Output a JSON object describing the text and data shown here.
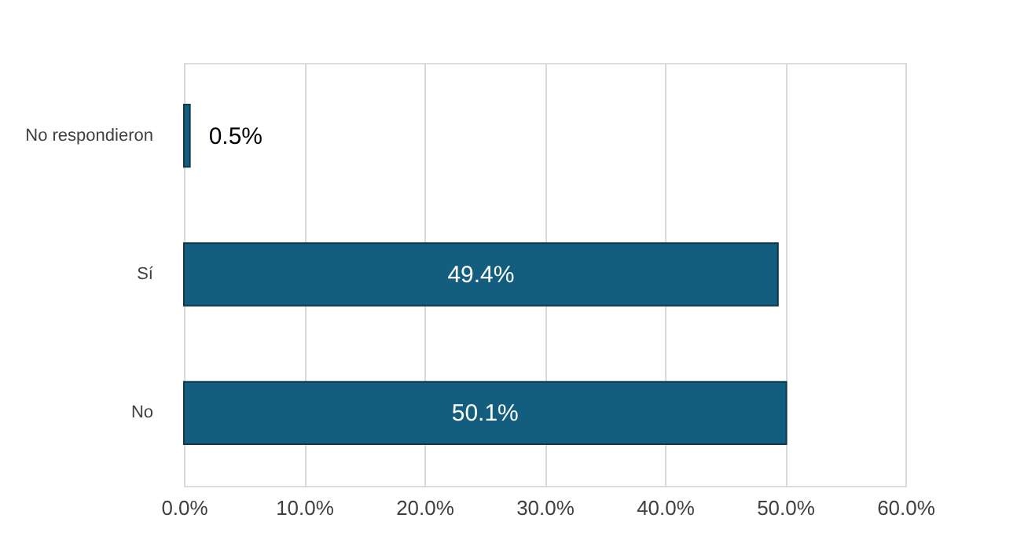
{
  "chart_data": {
    "type": "bar",
    "orientation": "horizontal",
    "categories": [
      "No respondieron",
      "Sí",
      "No"
    ],
    "values": [
      0.5,
      49.4,
      50.1
    ],
    "value_labels": [
      "0.5%",
      "49.4%",
      "50.1%"
    ],
    "color": "#135e7e",
    "xlim": [
      0,
      60
    ],
    "xticks": [
      {
        "value": 0,
        "label": "0.0%"
      },
      {
        "value": 10,
        "label": "10.0%"
      },
      {
        "value": 20,
        "label": "20.0%"
      },
      {
        "value": 30,
        "label": "30.0%"
      },
      {
        "value": 40,
        "label": "40.0%"
      },
      {
        "value": 50,
        "label": "50.0%"
      },
      {
        "value": 60,
        "label": "60.0%"
      }
    ],
    "grid": "x"
  }
}
